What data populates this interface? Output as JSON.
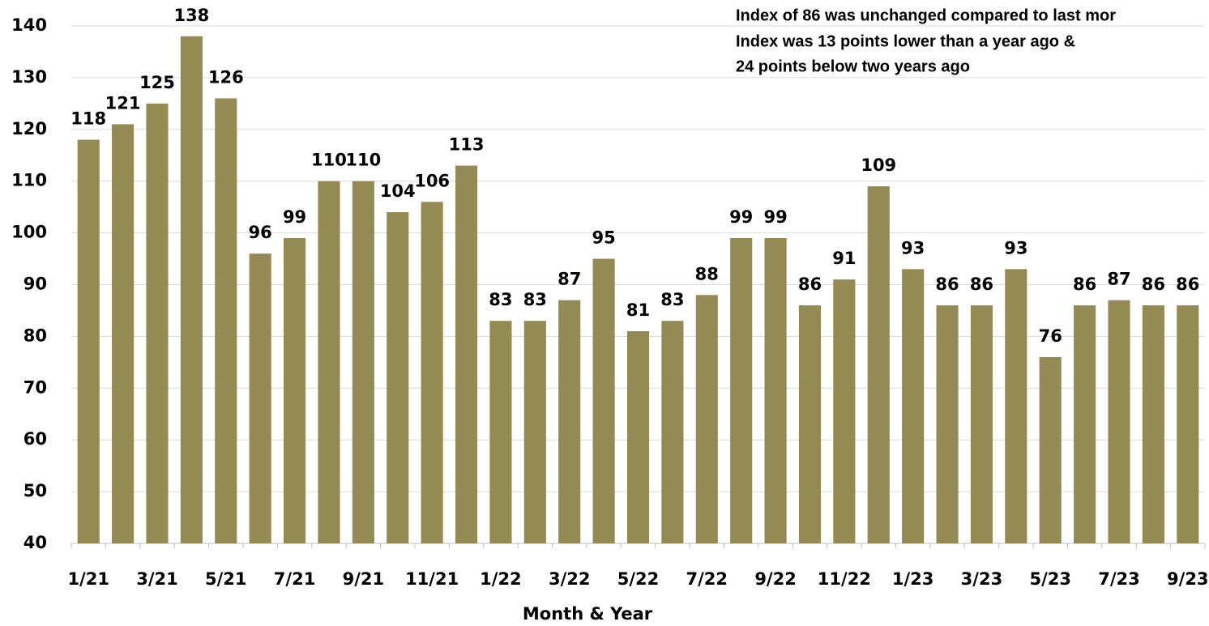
{
  "chart_data": {
    "type": "bar",
    "annotations": [
      "Index of 86 was unchanged compared to last mor",
      "Index was 13 points lower than a year ago &",
      "24 points below two years ago"
    ],
    "x_label": "Month & Year",
    "categories": [
      "1/21",
      null,
      "3/21",
      null,
      "5/21",
      null,
      "7/21",
      null,
      "9/21",
      null,
      "11/21",
      null,
      "1/22",
      null,
      "3/22",
      null,
      "5/22",
      null,
      "7/22",
      null,
      "9/22",
      null,
      "11/22",
      null,
      "1/23",
      null,
      "3/23",
      null,
      "5/23",
      null,
      "7/23",
      null,
      "9/23"
    ],
    "values": [
      118,
      121,
      125,
      138,
      126,
      96,
      99,
      110,
      110,
      104,
      106,
      113,
      83,
      83,
      87,
      95,
      81,
      83,
      88,
      99,
      99,
      86,
      91,
      109,
      93,
      86,
      86,
      93,
      76,
      86,
      87,
      86,
      86
    ],
    "color": "#948a54",
    "ylim": [
      40,
      140
    ],
    "yticks": [
      40,
      50,
      60,
      70,
      80,
      90,
      100,
      110,
      120,
      130,
      140
    ],
    "grid": true
  }
}
